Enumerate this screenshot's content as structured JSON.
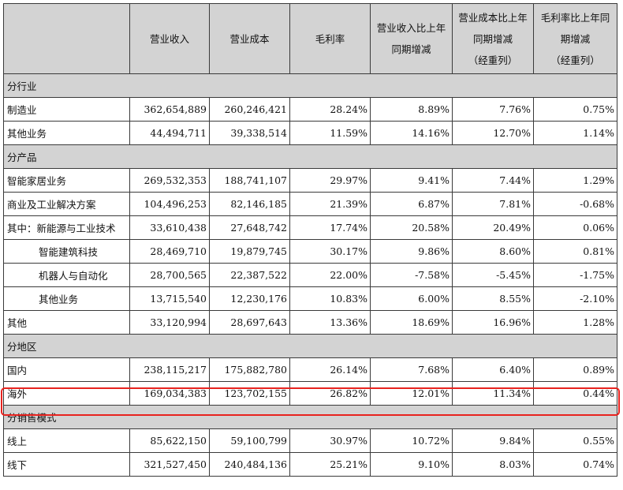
{
  "header": {
    "col0": "",
    "col1": "营业收入",
    "col2": "营业成本",
    "col3": "毛利率",
    "col4_line1": "营业收入比上年",
    "col4_line2": "同期增减",
    "col5_line1": "营业成本比上年",
    "col5_line2": "同期增减",
    "col5_line3": "（经重列）",
    "col6_line1": "毛利率比上年同",
    "col6_line2": "期增减",
    "col6_line3": "（经重列）"
  },
  "sections": {
    "industry": "分行业",
    "product": "分产品",
    "region": "分地区",
    "sales_mode": "分销售模式"
  },
  "rows": {
    "manufacturing": [
      "制造业",
      "362,654,889",
      "260,246,421",
      "28.24%",
      "8.89%",
      "7.76%",
      "0.75%"
    ],
    "other_business_1": [
      "其他业务",
      "44,494,711",
      "39,338,514",
      "11.59%",
      "14.16%",
      "12.70%",
      "1.14%"
    ],
    "smart_home": [
      "智能家居业务",
      "269,532,353",
      "188,741,107",
      "29.97%",
      "9.41%",
      "7.44%",
      "1.29%"
    ],
    "commercial_industrial": [
      "商业及工业解决方案",
      "104,496,253",
      "82,146,185",
      "21.39%",
      "6.87%",
      "7.81%",
      "-0.68%"
    ],
    "new_energy": [
      "其中：新能源与工业技术",
      "33,610,438",
      "27,648,742",
      "17.74%",
      "20.58%",
      "20.49%",
      "0.06%"
    ],
    "smart_building": [
      "智能建筑科技",
      "28,469,710",
      "19,879,745",
      "30.17%",
      "9.86%",
      "8.60%",
      "0.81%"
    ],
    "robotics": [
      "机器人与自动化",
      "28,700,565",
      "22,387,522",
      "22.00%",
      "-7.58%",
      "-5.45%",
      "-1.75%"
    ],
    "other_business_2": [
      "其他业务",
      "13,715,540",
      "12,230,176",
      "10.83%",
      "6.00%",
      "8.55%",
      "-2.10%"
    ],
    "other": [
      "其他",
      "33,120,994",
      "28,697,643",
      "13.36%",
      "18.69%",
      "16.96%",
      "1.28%"
    ],
    "domestic": [
      "国内",
      "238,115,217",
      "175,882,780",
      "26.14%",
      "7.68%",
      "6.40%",
      "0.89%"
    ],
    "overseas": [
      "海外",
      "169,034,383",
      "123,702,155",
      "26.82%",
      "12.01%",
      "11.34%",
      "0.44%"
    ],
    "online": [
      "线上",
      "85,622,150",
      "59,100,799",
      "30.97%",
      "10.72%",
      "9.84%",
      "0.55%"
    ],
    "offline": [
      "线下",
      "321,527,450",
      "240,484,136",
      "25.21%",
      "9.10%",
      "8.03%",
      "0.74%"
    ]
  },
  "colors": {
    "header_bg": "#d3d3d3",
    "highlight_border": "#e8231f"
  }
}
